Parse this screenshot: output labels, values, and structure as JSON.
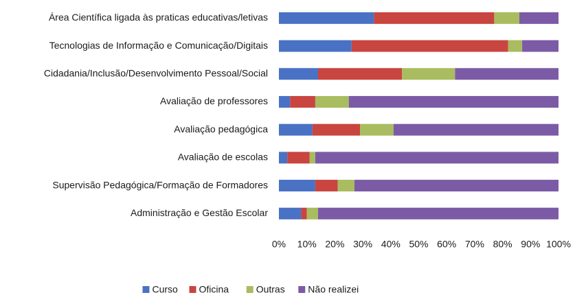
{
  "chart_data": {
    "type": "stacked-bar-horizontal",
    "categories": [
      "Área Científica ligada às praticas educativas/letivas",
      "Tecnologias de Informação e Comunicação/Digitais",
      "Cidadania/Inclusão/Desenvolvimento Pessoal/Social",
      "Avaliação de professores",
      "Avaliação pedagógica",
      "Avaliação de escolas",
      "Supervisão Pedagógica/Formação de Formadores",
      "Administração e Gestão Escolar"
    ],
    "series": [
      {
        "name": "Curso",
        "color": "#4a72c4",
        "values": [
          34,
          26,
          14,
          4,
          12,
          3,
          13,
          8
        ]
      },
      {
        "name": "Oficina",
        "color": "#c94540",
        "values": [
          43,
          56,
          30,
          9,
          17,
          8,
          8,
          2
        ]
      },
      {
        "name": "Outras",
        "color": "#a9bc5f",
        "values": [
          9,
          5,
          19,
          12,
          12,
          2,
          6,
          4
        ]
      },
      {
        "name": "Não realizei",
        "color": "#7c5ba6",
        "values": [
          14,
          13,
          37,
          75,
          59,
          87,
          73,
          86
        ]
      }
    ],
    "xlim": [
      0,
      100
    ],
    "xticks": [
      {
        "value": 0,
        "label": "0%"
      },
      {
        "value": 10,
        "label": "10%"
      },
      {
        "value": 20,
        "label": "20%"
      },
      {
        "value": 30,
        "label": "30%"
      },
      {
        "value": 40,
        "label": "40%"
      },
      {
        "value": 50,
        "label": "50%"
      },
      {
        "value": 60,
        "label": "60%"
      },
      {
        "value": 70,
        "label": "70%"
      },
      {
        "value": 80,
        "label": "80%"
      },
      {
        "value": 90,
        "label": "90%"
      },
      {
        "value": 100,
        "label": "100%"
      }
    ],
    "legend": "bottom"
  }
}
